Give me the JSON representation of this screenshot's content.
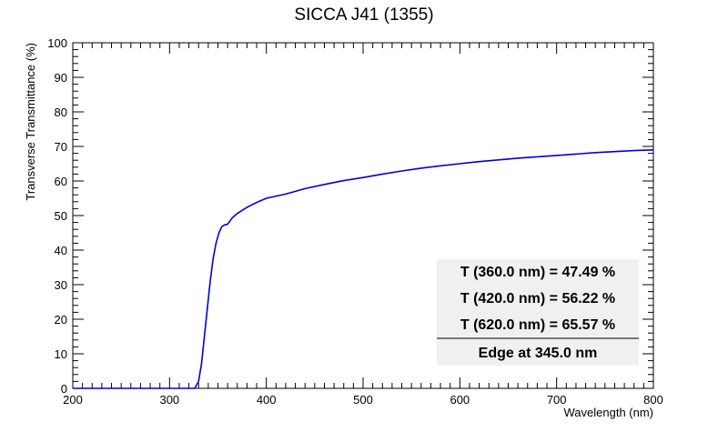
{
  "chart_data": {
    "type": "line",
    "title": "SICCA J41 (1355)",
    "xlabel": "Wavelength (nm)",
    "ylabel": "Transverse Transmittance (%)",
    "xlim": [
      200,
      800
    ],
    "ylim": [
      0,
      100
    ],
    "x_ticks": [
      200,
      300,
      400,
      500,
      600,
      700,
      800
    ],
    "y_ticks": [
      0,
      10,
      20,
      30,
      40,
      50,
      60,
      70,
      80,
      90,
      100
    ],
    "grid": false,
    "series_color": "#0000dd",
    "series": [
      {
        "x": [
          200,
          250,
          300,
          320,
          326,
          330,
          333,
          336,
          339,
          342,
          345,
          348,
          351,
          354,
          357,
          360,
          365,
          370,
          380,
          390,
          400,
          420,
          440,
          460,
          480,
          500,
          520,
          540,
          560,
          580,
          600,
          620,
          640,
          660,
          680,
          700,
          720,
          740,
          760,
          780,
          800
        ],
        "y": [
          0,
          0,
          0,
          0,
          0,
          2,
          7,
          15,
          23,
          31,
          37.5,
          42,
          45,
          46.8,
          47.3,
          47.5,
          49.4,
          50.6,
          52.4,
          53.8,
          55.0,
          56.2,
          57.8,
          59.0,
          60.1,
          61.0,
          62.0,
          62.9,
          63.7,
          64.4,
          65.0,
          65.6,
          66.1,
          66.6,
          67.0,
          67.4,
          67.8,
          68.2,
          68.5,
          68.8,
          69.0
        ]
      }
    ],
    "legend_position": "bottom-right",
    "annotations": [
      "T (360.0 nm) = 47.49 %",
      "T (420.0 nm) = 56.22 %",
      "T (620.0 nm) = 65.57 %",
      "Edge at 345.0 nm"
    ],
    "annotation_box_color": "#f0f0f0"
  }
}
